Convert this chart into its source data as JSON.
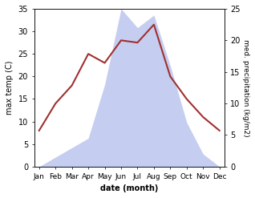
{
  "months": [
    "Jan",
    "Feb",
    "Mar",
    "Apr",
    "May",
    "Jun",
    "Jul",
    "Aug",
    "Sep",
    "Oct",
    "Nov",
    "Dec"
  ],
  "max_temp": [
    8,
    14,
    18,
    25,
    23,
    28,
    27.5,
    31.5,
    20,
    15,
    11,
    8
  ],
  "precipitation": [
    0,
    1.5,
    3,
    4.5,
    13,
    25,
    22,
    24,
    16,
    7,
    2,
    0
  ],
  "temp_color": "#a03030",
  "precip_color": "#aabbee",
  "precip_fill_color": "#c5cef0",
  "title": "",
  "xlabel": "date (month)",
  "ylabel_left": "max temp (C)",
  "ylabel_right": "med. precipitation (kg/m2)",
  "ylim_left": [
    0,
    35
  ],
  "ylim_right": [
    0,
    25
  ],
  "yticks_left": [
    0,
    5,
    10,
    15,
    20,
    25,
    30,
    35
  ],
  "yticks_right": [
    0,
    5,
    10,
    15,
    20,
    25
  ],
  "bg_color": "#ffffff"
}
